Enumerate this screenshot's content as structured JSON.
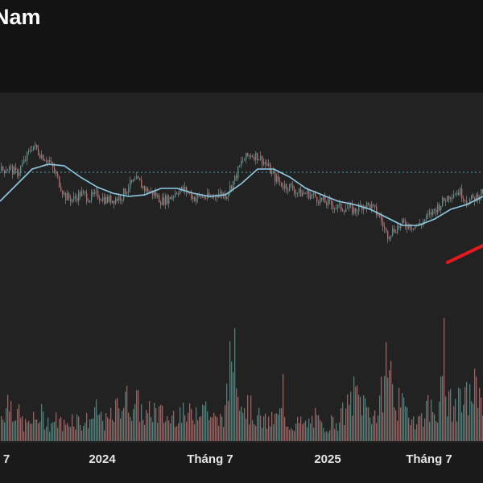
{
  "header": {
    "title": "Nam"
  },
  "chart_data": {
    "type": "candlestick",
    "title": "Nam",
    "x_tick_labels": [
      "7",
      "2024",
      "Tháng 7",
      "2025",
      "Tháng 7"
    ],
    "price_ylim": [
      0,
      100
    ],
    "reference_line_value": 73,
    "moving_average": {
      "name": "",
      "x": [
        0,
        20,
        40,
        60,
        80,
        100,
        120,
        140,
        160,
        180,
        200,
        220,
        240,
        260,
        280,
        300,
        320,
        340,
        360,
        380,
        400,
        420,
        440,
        460,
        480,
        500,
        520,
        540,
        560,
        580,
        600
      ],
      "y": [
        55,
        65,
        75,
        78,
        77,
        70,
        64,
        60,
        58,
        59,
        63,
        63,
        60,
        58,
        59,
        66,
        75,
        75,
        70,
        63,
        59,
        55,
        53,
        50,
        45,
        40,
        40,
        44,
        50,
        53,
        58
      ]
    },
    "price_series": {
      "x": [
        0,
        10,
        20,
        30,
        40,
        50,
        60,
        70,
        80,
        90,
        100,
        110,
        120,
        130,
        140,
        150,
        160,
        170,
        180,
        190,
        200,
        210,
        220,
        230,
        240,
        250,
        260,
        270,
        280,
        290,
        300,
        310,
        320,
        330,
        340,
        350,
        360,
        370,
        380,
        390,
        400,
        410,
        420,
        430,
        440,
        450,
        460,
        470,
        480,
        490,
        500,
        510,
        520,
        530,
        540,
        550,
        560,
        570,
        580,
        590,
        600
      ],
      "y": [
        74,
        76,
        72,
        80,
        90,
        84,
        80,
        70,
        58,
        56,
        60,
        57,
        59,
        56,
        56,
        58,
        65,
        68,
        62,
        60,
        55,
        57,
        62,
        62,
        57,
        58,
        57,
        60,
        59,
        68,
        80,
        84,
        83,
        78,
        70,
        65,
        64,
        60,
        60,
        58,
        55,
        53,
        51,
        51,
        49,
        53,
        52,
        46,
        34,
        38,
        41,
        40,
        40,
        45,
        50,
        55,
        60,
        61,
        55,
        57,
        62
      ]
    },
    "volume_series": {
      "x": [
        0,
        10,
        20,
        30,
        40,
        50,
        60,
        70,
        80,
        90,
        100,
        110,
        120,
        130,
        140,
        150,
        160,
        170,
        180,
        190,
        200,
        210,
        220,
        230,
        240,
        250,
        260,
        270,
        280,
        290,
        300,
        310,
        320,
        330,
        340,
        350,
        360,
        370,
        380,
        390,
        400,
        410,
        420,
        430,
        440,
        450,
        460,
        470,
        480,
        490,
        500,
        510,
        520,
        530,
        540,
        550,
        560,
        570,
        580,
        590,
        600
      ],
      "y": [
        18,
        32,
        22,
        12,
        15,
        20,
        14,
        16,
        12,
        19,
        14,
        16,
        22,
        14,
        19,
        31,
        30,
        28,
        18,
        24,
        20,
        16,
        24,
        18,
        22,
        32,
        20,
        14,
        24,
        85,
        30,
        24,
        18,
        14,
        16,
        22,
        12,
        14,
        12,
        18,
        10,
        14,
        16,
        24,
        36,
        30,
        22,
        20,
        65,
        32,
        24,
        20,
        16,
        26,
        22,
        40,
        26,
        28,
        32,
        40,
        38
      ]
    },
    "xlabel": "",
    "ylabel": ""
  },
  "colors": {
    "up": "#26a69a",
    "down": "#ef5350",
    "ma_line": "#8ecae6",
    "reference_line": "#4fa8a8",
    "trend_line": "#e8191d"
  }
}
